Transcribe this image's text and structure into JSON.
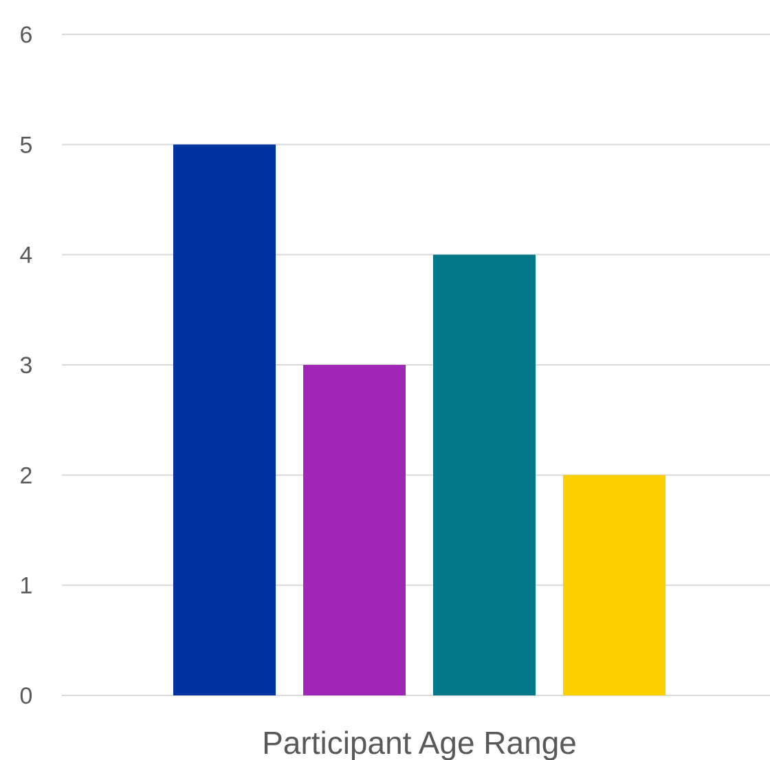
{
  "chart_data": {
    "type": "bar",
    "title": "",
    "xlabel": "Participant Age Range",
    "ylabel": "",
    "ylim": [
      0,
      6
    ],
    "yticks": [
      "0",
      "1",
      "2",
      "3",
      "4",
      "5",
      "6"
    ],
    "grid": true,
    "legend": "none",
    "series": [
      {
        "values": [
          5
        ],
        "color": "#0033A0"
      },
      {
        "values": [
          3
        ],
        "color": "#A026B6"
      },
      {
        "values": [
          4
        ],
        "color": "#037889"
      },
      {
        "values": [
          2
        ],
        "color": "#FBCF00"
      }
    ]
  }
}
